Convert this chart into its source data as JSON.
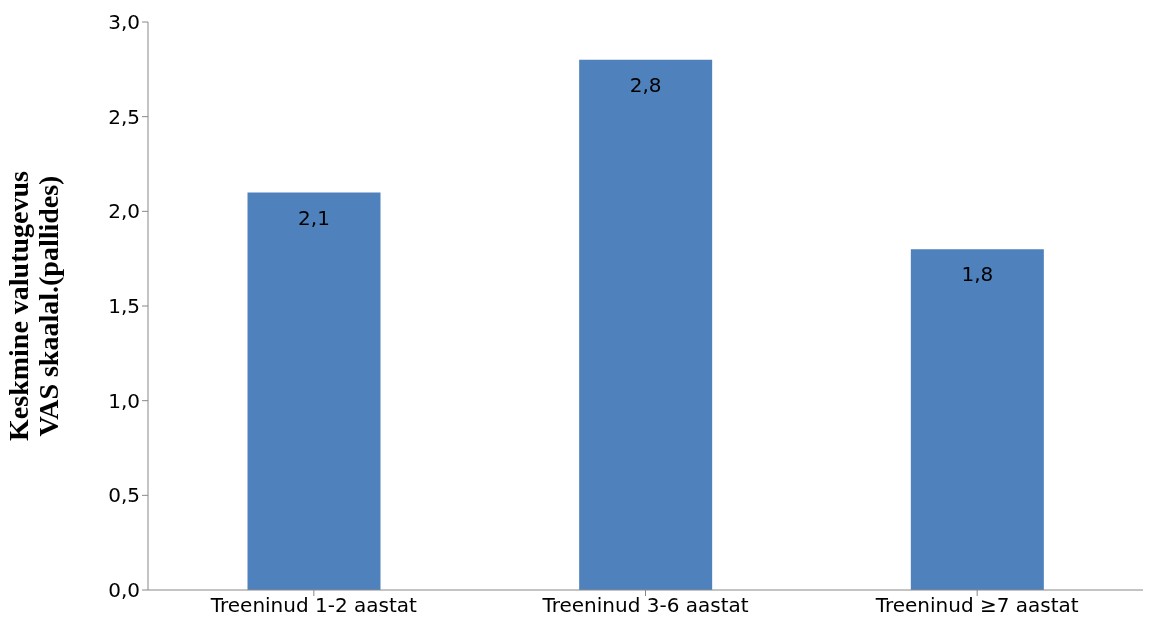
{
  "chart_data": {
    "type": "bar",
    "ylabel": "Keskmine valutugevus VAS skaalal.(pallides)",
    "categories": [
      "Treeninud 1-2 aastat",
      "Treeninud 3-6 aastat",
      "Treeninud ≥7 aastat"
    ],
    "values": [
      2.1,
      2.8,
      1.8
    ],
    "color": "#4f81bd",
    "value_labels": [
      "2,1",
      "2,8",
      "1,8"
    ],
    "ylim": [
      0,
      3
    ],
    "yticks": [
      {
        "value": 0,
        "label": "0,0"
      },
      {
        "value": 0.5,
        "label": "0,5"
      },
      {
        "value": 1,
        "label": "1,0"
      },
      {
        "value": 1.5,
        "label": "1,5"
      },
      {
        "value": 2,
        "label": "2,0"
      },
      {
        "value": 2.5,
        "label": "2,5"
      },
      {
        "value": 3,
        "label": "3,0"
      }
    ],
    "grid": false
  }
}
